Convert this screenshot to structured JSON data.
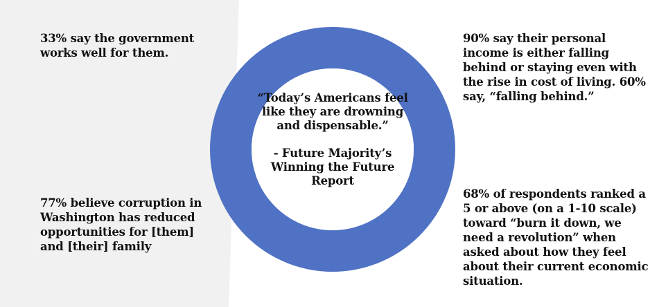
{
  "colors": {
    "ring": "#5072C4",
    "panel": "#F1F1F1",
    "text": "#111111"
  },
  "callouts": {
    "top_left": "33% say the government works well for them.",
    "bottom_left": "77% believe corruption in Washington has reduced opportunities for [them] and [their] family",
    "top_right": "90% say their personal income is either falling behind or staying even with the rise in cost of living. 60% say, “falling behind.”",
    "bottom_right": "68% of respondents ranked a 5 or above (on a 1-10 scale) toward “burn it down, we need a revolution” when asked about how they feel about their current economic situation."
  },
  "center": {
    "quote": "“Today’s Americans feel like they are drowning and dispensable.”",
    "attribution": "- Future Majority’s Winning the Future Report"
  }
}
